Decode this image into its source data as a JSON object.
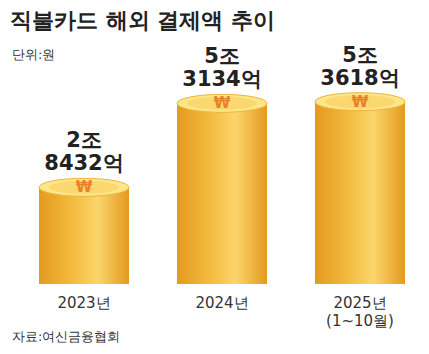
{
  "chart_data": {
    "type": "bar",
    "title": "직불카드 해외 결제액 추이",
    "subtitle": "단위:원",
    "source": "자료:여신금융협회",
    "coin_symbol": "₩",
    "categories": [
      "2023년",
      "2024년",
      "2025년\n(1~10월)"
    ],
    "values": [
      2843200000000,
      5313400000000,
      5361800000000
    ],
    "value_labels": [
      "2조\n8432억",
      "5조\n3134억",
      "5조\n3618억"
    ],
    "color": "#f3b93c",
    "ylim": [
      0,
      6000000000000
    ],
    "tick_labels": "x",
    "data_labels": true
  }
}
